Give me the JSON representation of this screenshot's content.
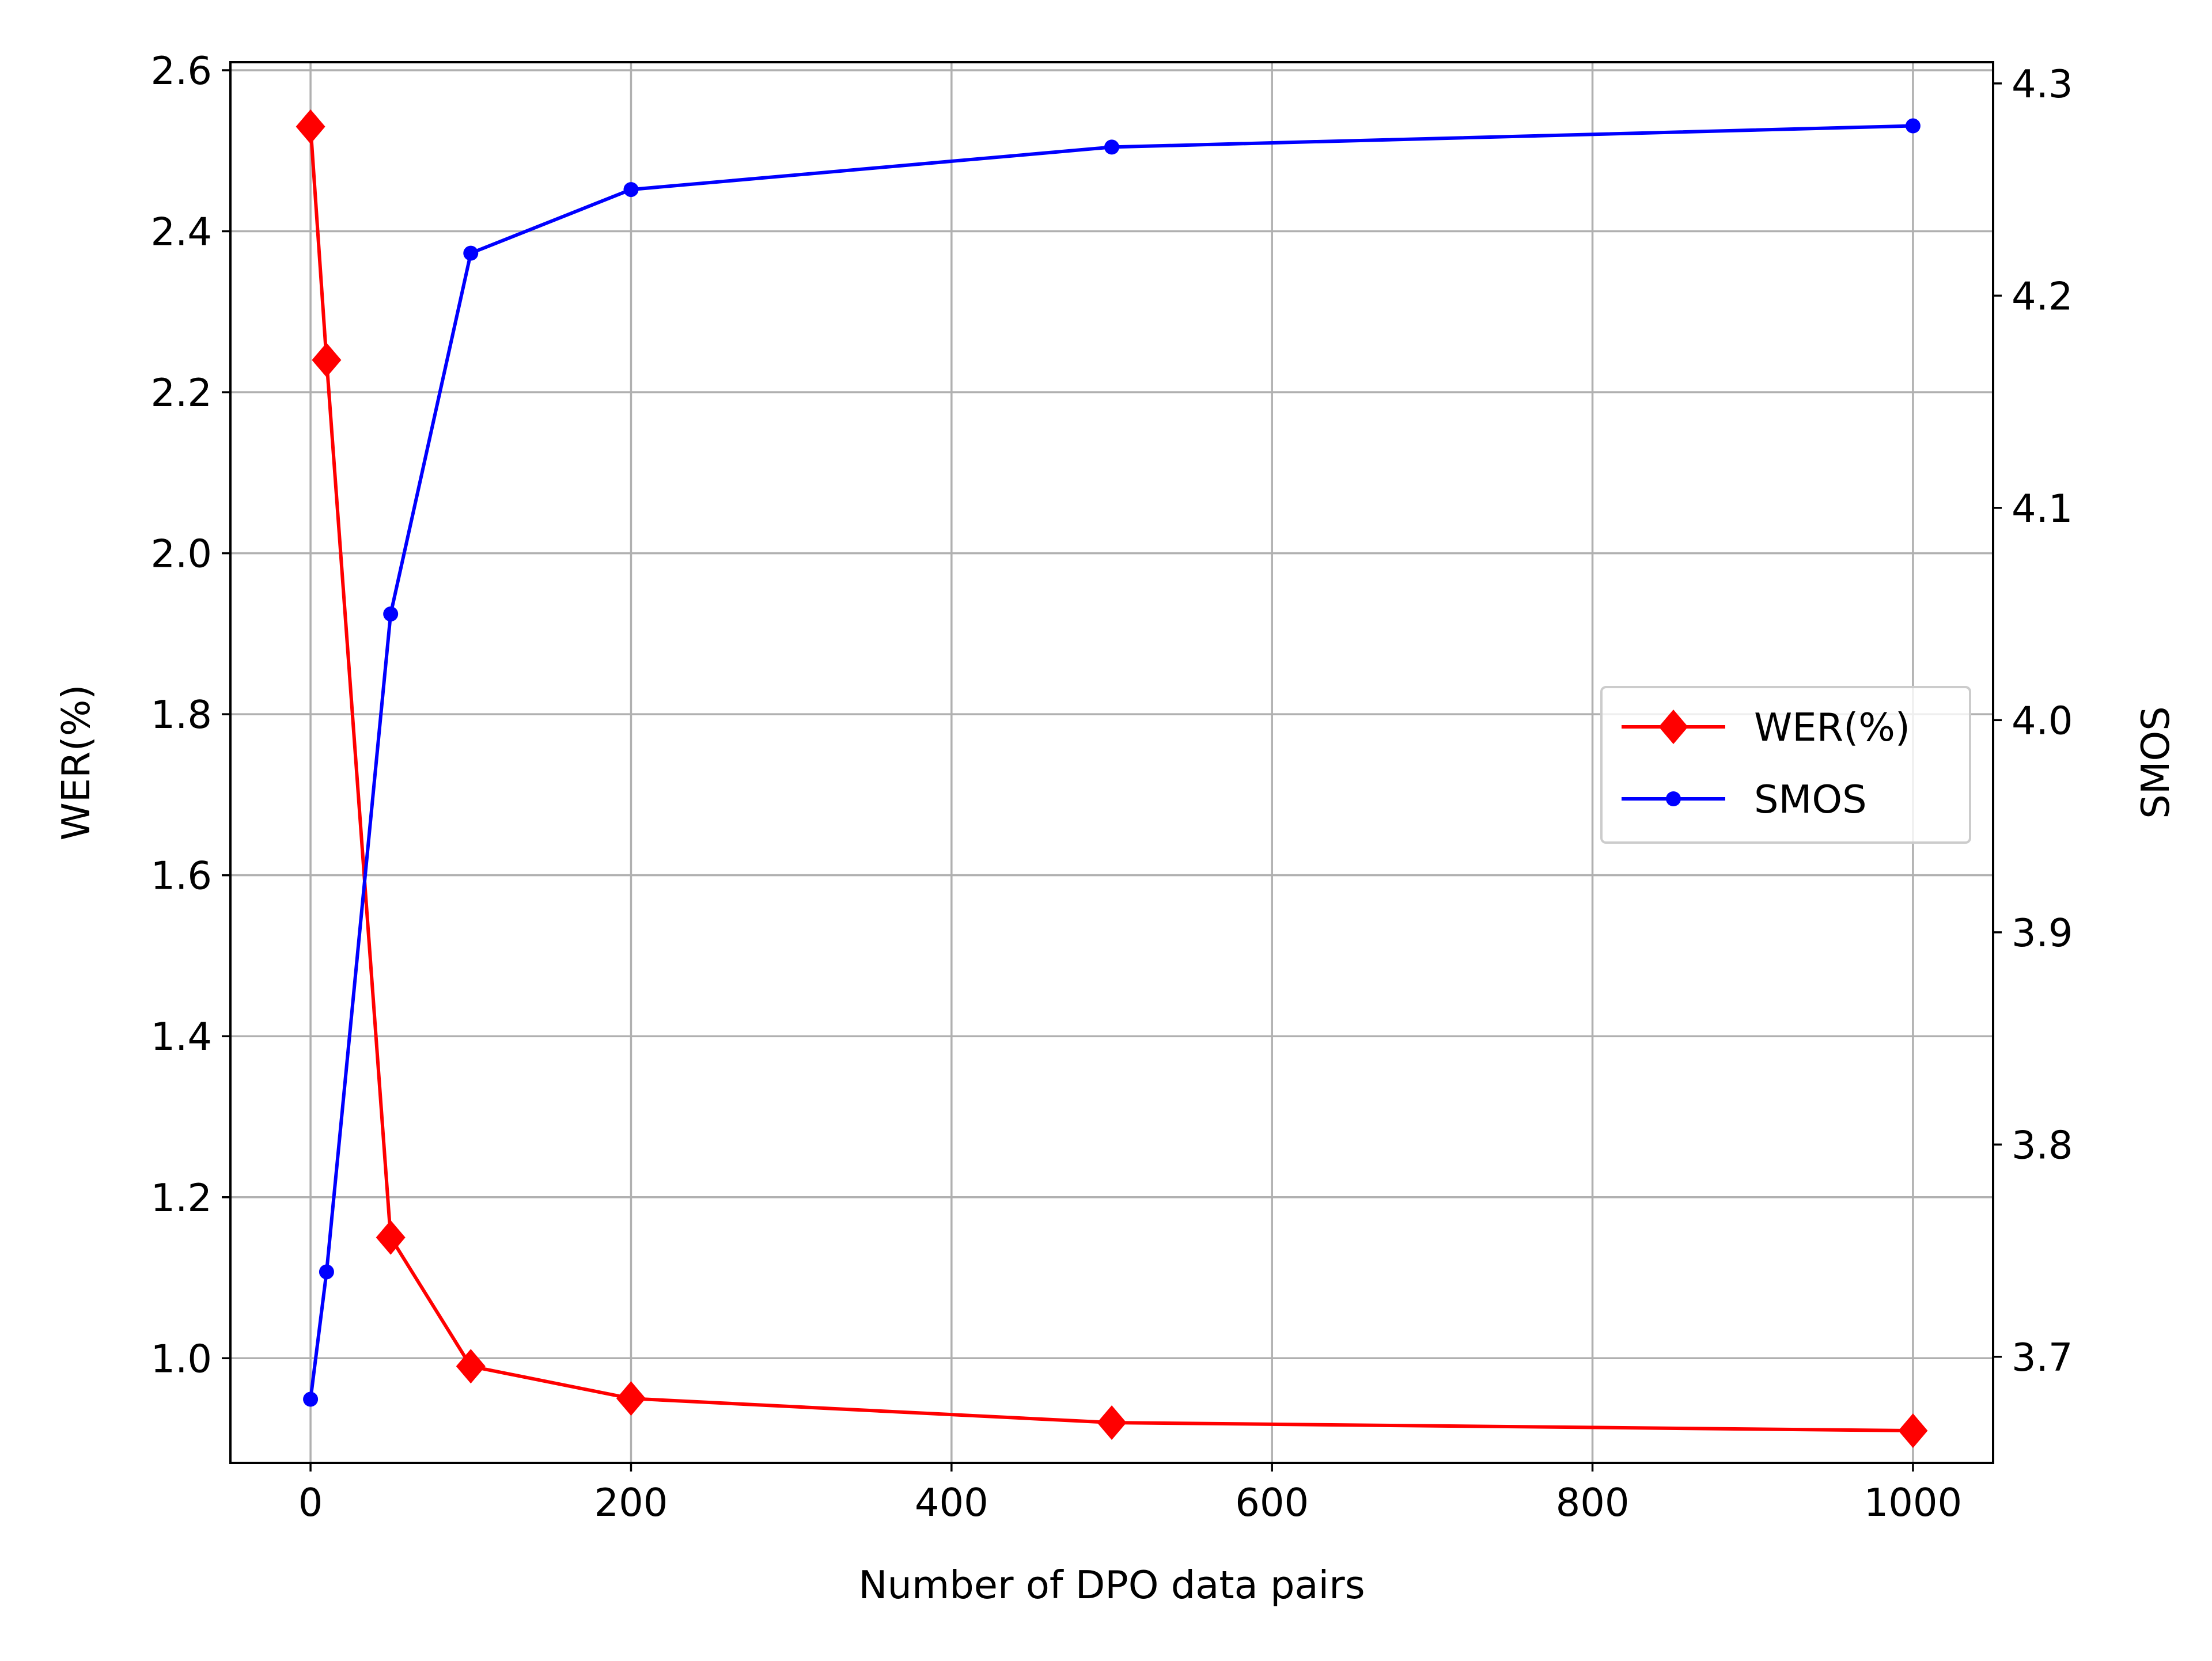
{
  "chart_data": {
    "type": "line",
    "title": "",
    "xlabel": "Number of DPO data pairs",
    "ylabel_left": "WER(%)",
    "ylabel_right": "SMOS",
    "x": [
      0,
      10,
      50,
      100,
      200,
      500,
      1000
    ],
    "xlim": [
      -50,
      1050
    ],
    "ylim_left": [
      0.87,
      2.61
    ],
    "ylim_right": [
      3.65,
      4.31
    ],
    "x_ticks": [
      0,
      200,
      400,
      600,
      800,
      1000
    ],
    "y_left_ticks": [
      1.0,
      1.2,
      1.4,
      1.6,
      1.8,
      2.0,
      2.2,
      2.4,
      2.6
    ],
    "y_right_ticks": [
      3.7,
      3.8,
      3.9,
      4.0,
      4.1,
      4.2,
      4.3
    ],
    "x_tick_labels": [
      "0",
      "200",
      "400",
      "600",
      "800",
      "1000"
    ],
    "y_left_tick_labels": [
      "1.0",
      "1.2",
      "1.4",
      "1.6",
      "1.8",
      "2.0",
      "2.2",
      "2.4",
      "2.6"
    ],
    "y_right_tick_labels": [
      "3.7",
      "3.8",
      "3.9",
      "4.0",
      "4.1",
      "4.2",
      "4.3"
    ],
    "grid": true,
    "legend_position": "center-right",
    "series": [
      {
        "name": "WER(%)",
        "axis": "left",
        "color": "#ff0000",
        "marker": "diamond",
        "values": [
          2.53,
          2.24,
          1.15,
          0.99,
          0.95,
          0.92,
          0.91
        ]
      },
      {
        "name": "SMOS",
        "axis": "right",
        "color": "#0000ff",
        "marker": "dot",
        "values": [
          3.68,
          3.74,
          4.05,
          4.22,
          4.25,
          4.27,
          4.28
        ]
      }
    ]
  }
}
